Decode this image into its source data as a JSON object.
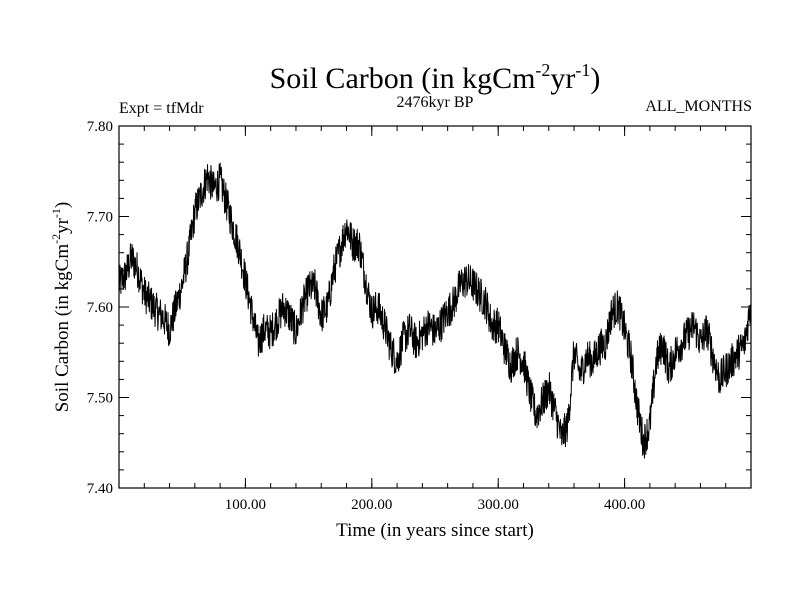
{
  "chart_data": {
    "type": "line",
    "title_main": "Soil Carbon (in kgCm",
    "title_exp1": "-2",
    "title_mid": "yr",
    "title_exp2": "-1",
    "title_end": ")",
    "subtitle_left": "Expt = tfMdr",
    "subtitle_center": "2476kyr BP",
    "subtitle_right": "ALL_MONTHS",
    "xlabel": "Time (in years since start)",
    "ylabel_main": "Soil Carbon (in kgCm",
    "ylabel_exp1": "-2",
    "ylabel_mid": "yr",
    "ylabel_exp2": "-1",
    "ylabel_end": ")",
    "xlim": [
      0,
      500
    ],
    "ylim": [
      7.4,
      7.8
    ],
    "x_ticks": [
      {
        "value": 100,
        "label": "100.00"
      },
      {
        "value": 200,
        "label": "200.00"
      },
      {
        "value": 300,
        "label": "300.00"
      },
      {
        "value": 400,
        "label": "400.00"
      }
    ],
    "y_ticks": [
      {
        "value": 7.4,
        "label": "7.40"
      },
      {
        "value": 7.5,
        "label": "7.50"
      },
      {
        "value": 7.6,
        "label": "7.60"
      },
      {
        "value": 7.7,
        "label": "7.70"
      },
      {
        "value": 7.8,
        "label": "7.80"
      }
    ],
    "series": [
      {
        "name": "Soil Carbon",
        "color": "#000000",
        "x": [
          0,
          5,
          10,
          15,
          20,
          25,
          30,
          35,
          40,
          45,
          50,
          55,
          60,
          65,
          70,
          75,
          80,
          85,
          90,
          95,
          100,
          105,
          110,
          115,
          120,
          125,
          130,
          135,
          140,
          145,
          150,
          155,
          160,
          165,
          170,
          175,
          180,
          185,
          190,
          195,
          200,
          205,
          210,
          215,
          220,
          225,
          230,
          235,
          240,
          245,
          250,
          255,
          260,
          265,
          270,
          275,
          280,
          285,
          290,
          295,
          300,
          305,
          310,
          315,
          320,
          325,
          330,
          335,
          340,
          345,
          350,
          355,
          360,
          365,
          370,
          375,
          380,
          385,
          390,
          395,
          400,
          405,
          410,
          415,
          420,
          425,
          430,
          435,
          440,
          445,
          450,
          455,
          460,
          465,
          470,
          475,
          480,
          485,
          490,
          495,
          500
        ],
        "y": [
          7.625,
          7.635,
          7.655,
          7.64,
          7.615,
          7.605,
          7.595,
          7.588,
          7.575,
          7.6,
          7.625,
          7.66,
          7.705,
          7.725,
          7.745,
          7.73,
          7.74,
          7.715,
          7.69,
          7.665,
          7.63,
          7.595,
          7.56,
          7.575,
          7.572,
          7.585,
          7.6,
          7.59,
          7.572,
          7.6,
          7.62,
          7.622,
          7.59,
          7.6,
          7.64,
          7.665,
          7.69,
          7.67,
          7.67,
          7.63,
          7.595,
          7.6,
          7.58,
          7.555,
          7.54,
          7.565,
          7.575,
          7.56,
          7.57,
          7.58,
          7.572,
          7.582,
          7.595,
          7.605,
          7.625,
          7.63,
          7.625,
          7.615,
          7.605,
          7.58,
          7.58,
          7.555,
          7.535,
          7.55,
          7.54,
          7.505,
          7.48,
          7.495,
          7.51,
          7.485,
          7.455,
          7.47,
          7.55,
          7.525,
          7.545,
          7.54,
          7.555,
          7.56,
          7.595,
          7.6,
          7.575,
          7.545,
          7.49,
          7.45,
          7.47,
          7.54,
          7.56,
          7.53,
          7.55,
          7.56,
          7.57,
          7.58,
          7.56,
          7.575,
          7.545,
          7.52,
          7.53,
          7.54,
          7.55,
          7.56,
          7.605
        ]
      }
    ]
  }
}
